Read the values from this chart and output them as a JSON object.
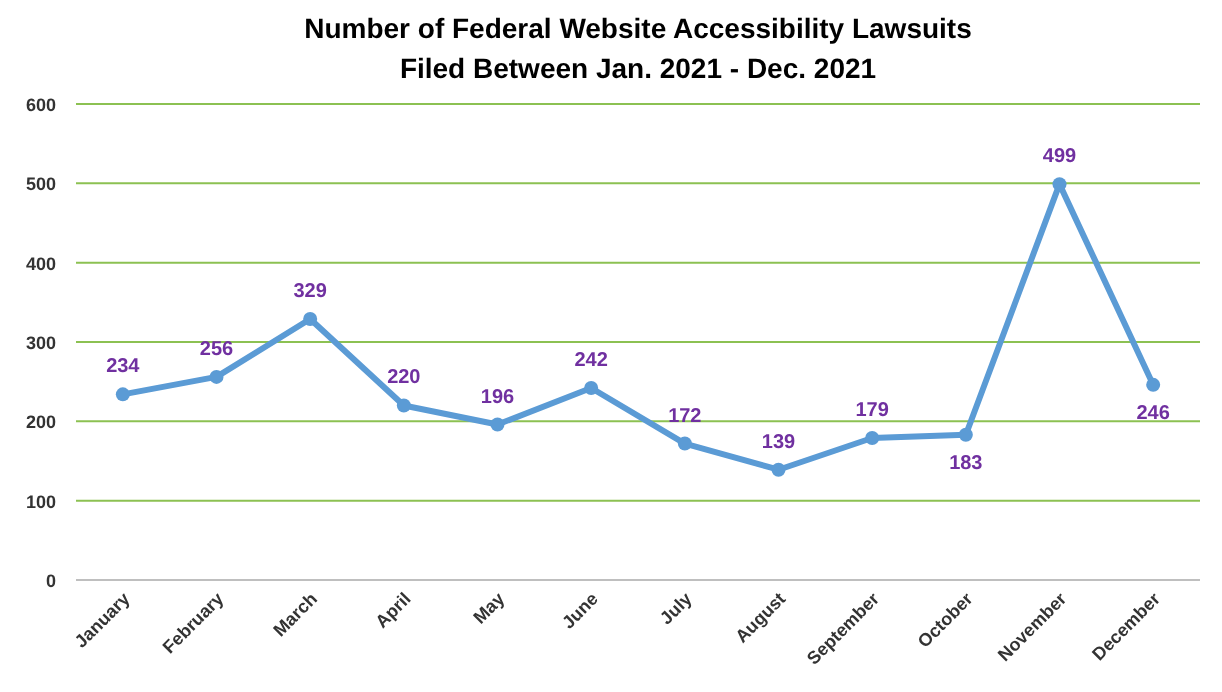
{
  "chart_data": {
    "type": "line",
    "title": "Number of Federal Website Accessibility Lawsuits\nFiled Between Jan. 2021 - Dec. 2021",
    "categories": [
      "January",
      "February",
      "March",
      "April",
      "May",
      "June",
      "July",
      "August",
      "September",
      "October",
      "November",
      "December"
    ],
    "series": [
      {
        "color": "#5b9bd5",
        "values": [
          234,
          256,
          329,
          220,
          196,
          242,
          172,
          139,
          179,
          183,
          499,
          246
        ]
      }
    ],
    "ylim": [
      0,
      600
    ],
    "yticks": [
      0,
      100,
      200,
      300,
      400,
      500,
      600
    ],
    "grid": "y",
    "marker": "circle",
    "line_style": "solid",
    "data_labels": true
  }
}
